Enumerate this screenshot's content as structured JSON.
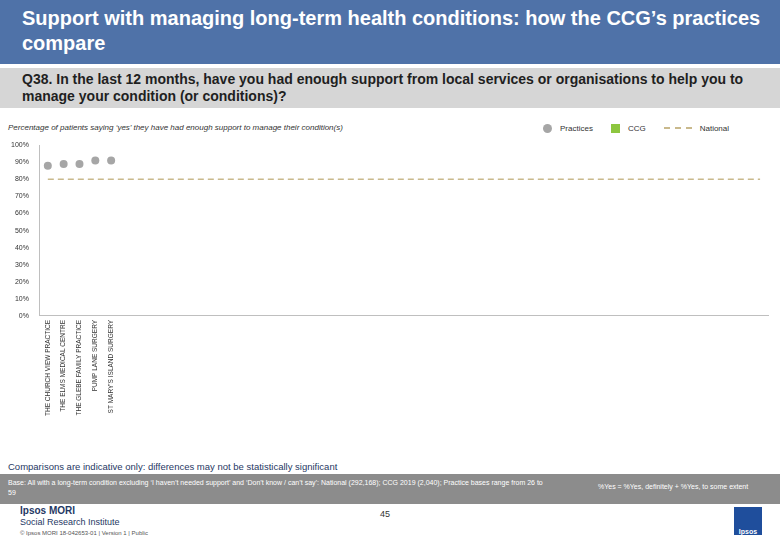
{
  "header": {
    "title": "Support with managing long-term health conditions: how the CCG’s practices compare",
    "question": "Q38. In the last 12 months, have you had enough support from local services or organisations to help you to manage your condition (or conditions)?"
  },
  "chart_data": {
    "type": "line",
    "subtitle": "Percentage of patients saying ‘yes’ they have had enough support to manage their condition(s)",
    "categories": [
      "THE CHURCH VIEW PRACTICE",
      "THE ELMS MEDICAL CENTRE",
      "THE GLEBE FAMILY PRACTICE",
      "PUMP LANE SURGERY",
      "ST MARY'S ISLAND SURGERY",
      null,
      null,
      null,
      null,
      null,
      null,
      null,
      null,
      null,
      null,
      null,
      null,
      null,
      null,
      null,
      null,
      null,
      null,
      null,
      null,
      null,
      null,
      null,
      null,
      null,
      null,
      null,
      null,
      null,
      null,
      null,
      null,
      null,
      null,
      null,
      null,
      null,
      null,
      null,
      null,
      null
    ],
    "series": [
      {
        "name": "Practices",
        "type": "scatter",
        "marker": "circle",
        "color": "#a6a6a6",
        "values": [
          88,
          89,
          89,
          91,
          91,
          null,
          null,
          null,
          null,
          null,
          null,
          null,
          null,
          null,
          null,
          null,
          null,
          null,
          null,
          null,
          null,
          null,
          null,
          null,
          null,
          null,
          null,
          null,
          null,
          null,
          null,
          null,
          null,
          null,
          null,
          null,
          null,
          null,
          null,
          null,
          null,
          null,
          null,
          null,
          null,
          null
        ]
      },
      {
        "name": "CCG",
        "type": "line",
        "marker": "square",
        "color": "#8dc63f",
        "values": [
          null,
          null,
          null,
          null,
          null,
          null,
          null,
          null,
          null,
          null,
          null,
          null,
          null,
          null,
          null,
          null,
          null,
          null,
          null,
          null,
          null,
          null,
          null,
          null,
          null,
          null,
          null,
          null,
          null,
          null,
          null,
          null,
          null,
          null,
          null,
          null,
          null,
          null,
          null,
          null,
          null,
          null,
          null,
          null,
          null,
          null
        ]
      },
      {
        "name": "National",
        "type": "line",
        "line_style": "dashed",
        "color": "#c9b98c",
        "values": [
          80,
          80,
          80,
          80,
          80,
          80,
          80,
          80,
          80,
          80,
          80,
          80,
          80,
          80,
          80,
          80,
          80,
          80,
          80,
          80,
          80,
          80,
          80,
          80,
          80,
          80,
          80,
          80,
          80,
          80,
          80,
          80,
          80,
          80,
          80,
          80,
          80,
          80,
          80,
          80,
          80,
          80,
          80,
          80,
          80,
          80
        ]
      }
    ],
    "ylim": [
      0,
      100
    ],
    "yticks": [
      {
        "value": 0,
        "label": "0%"
      },
      {
        "value": 10,
        "label": "10%"
      },
      {
        "value": 20,
        "label": "20%"
      },
      {
        "value": 30,
        "label": "30%"
      },
      {
        "value": 40,
        "label": "40%"
      },
      {
        "value": 50,
        "label": "50%"
      },
      {
        "value": 60,
        "label": "60%"
      },
      {
        "value": 70,
        "label": "70%"
      },
      {
        "value": 80,
        "label": "80%"
      },
      {
        "value": 90,
        "label": "90%"
      },
      {
        "value": 100,
        "label": "100%"
      }
    ],
    "grid": false,
    "legend": "top-right"
  },
  "footer": {
    "note": "Comparisons are indicative only: differences may not be statistically significant",
    "base": "Base: All with a long-term condition excluding ‘I haven’t needed support’ and ‘Don’t know / can’t say’: National (292,168); CCG 2019 (2,040); Practice bases range from 26 to 59",
    "definition": "%Yes = %Yes, definitely + %Yes, to some extent",
    "page": "45",
    "brand": "Ipsos MORI",
    "brand_sub": "Social Research Institute",
    "copyright": "© Ipsos MORI    18-042653-01 | Version 1 | Public",
    "logo": "Ipsos"
  }
}
